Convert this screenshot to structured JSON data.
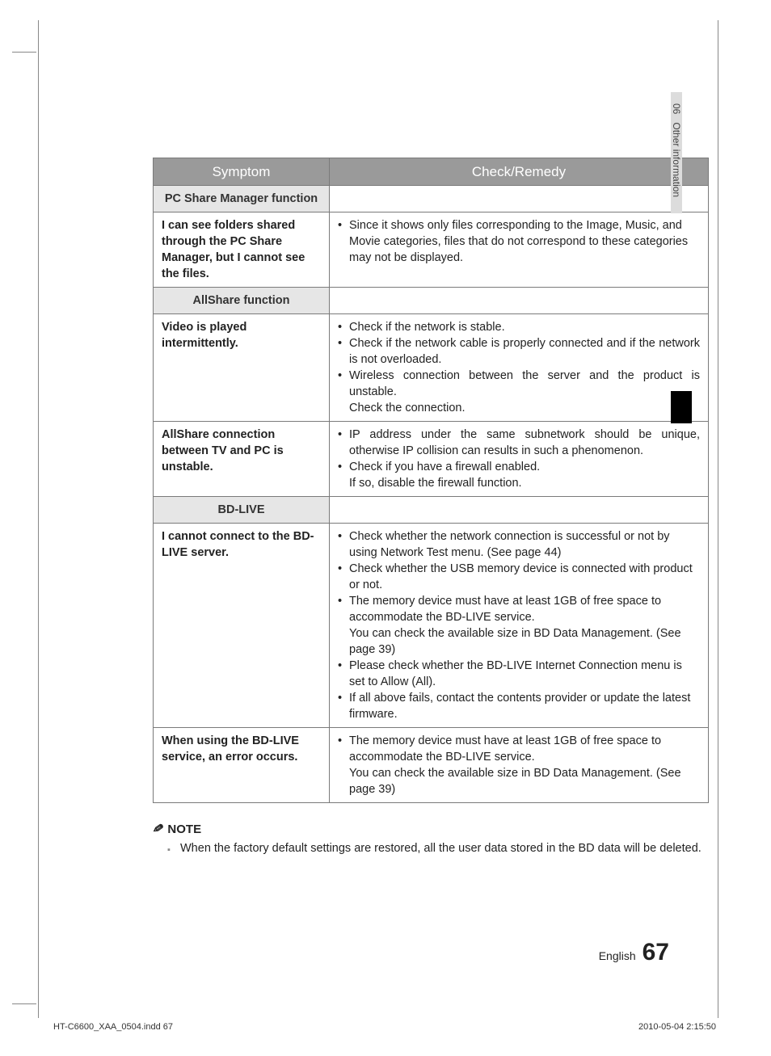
{
  "side_tab": {
    "chapter_num": "06",
    "chapter_title": "Other information"
  },
  "table": {
    "headers": {
      "symptom": "Symptom",
      "remedy": "Check/Remedy"
    },
    "sections": [
      {
        "title": "PC Share Manager function",
        "rows": [
          {
            "symptom": "I can see folders shared through the PC Share Manager, but I cannot see the files.",
            "remedy_items": [
              {
                "bullet": "•",
                "text": "Since it shows only files corresponding to the Image, Music, and Movie categories, files that do not correspond to these categories may not be displayed."
              }
            ]
          }
        ]
      },
      {
        "title": "AllShare function",
        "rows": [
          {
            "symptom": "Video is played intermittently.",
            "justify": true,
            "remedy_items": [
              {
                "bullet": "•",
                "text": "Check if the network is stable."
              },
              {
                "bullet": "•",
                "text": "Check if the network cable is properly connected and if the network is not overloaded."
              },
              {
                "bullet": "•",
                "text": "Wireless connection between the server and the product is unstable."
              },
              {
                "sub": true,
                "text": "Check the connection."
              }
            ]
          },
          {
            "symptom": "AllShare connection between TV and PC is unstable.",
            "justify": true,
            "remedy_items": [
              {
                "bullet": "•",
                "text": "IP address under the same subnetwork should be unique, otherwise IP collision can results in such a phenomenon."
              },
              {
                "bullet": "•",
                "text": "Check if you have a firewall enabled."
              },
              {
                "sub": true,
                "text": "If so, disable the firewall function."
              }
            ]
          }
        ]
      },
      {
        "title": "BD-LIVE",
        "rows": [
          {
            "symptom": "I cannot connect to the BD-LIVE server.",
            "remedy_items": [
              {
                "bullet": "•",
                "text": "Check whether the network connection is successful or not by using Network Test menu. (See page 44)"
              },
              {
                "bullet": "•",
                "text": "Check whether the USB memory device is connected with product or not."
              },
              {
                "bullet": "•",
                "text": "The memory device must have at least 1GB of free space to accommodate the BD-LIVE service."
              },
              {
                "sub": true,
                "text": "You can check the available size in BD Data Management. (See page 39)"
              },
              {
                "bullet": "•",
                "text": "Please check whether the BD-LIVE Internet Connection menu is set to Allow (All)."
              },
              {
                "bullet": "•",
                "text": "If all above fails, contact the contents provider or update the latest firmware."
              }
            ]
          },
          {
            "symptom": "When using the BD-LIVE service, an error occurs.",
            "remedy_items": [
              {
                "bullet": "•",
                "text": "The memory device must have at least 1GB of free space to accommodate the BD-LIVE service."
              },
              {
                "sub": true,
                "text": "You can check the available size in BD Data Management. (See page 39)"
              }
            ]
          }
        ]
      }
    ]
  },
  "note": {
    "heading": "NOTE",
    "items": [
      "When the factory default settings are restored, all the user data stored in the BD data will be deleted."
    ]
  },
  "footer": {
    "lang": "English",
    "page_num": "67"
  },
  "indd": {
    "file": "HT-C6600_XAA_0504.indd   67",
    "stamp": "2010-05-04    2:15:50"
  }
}
